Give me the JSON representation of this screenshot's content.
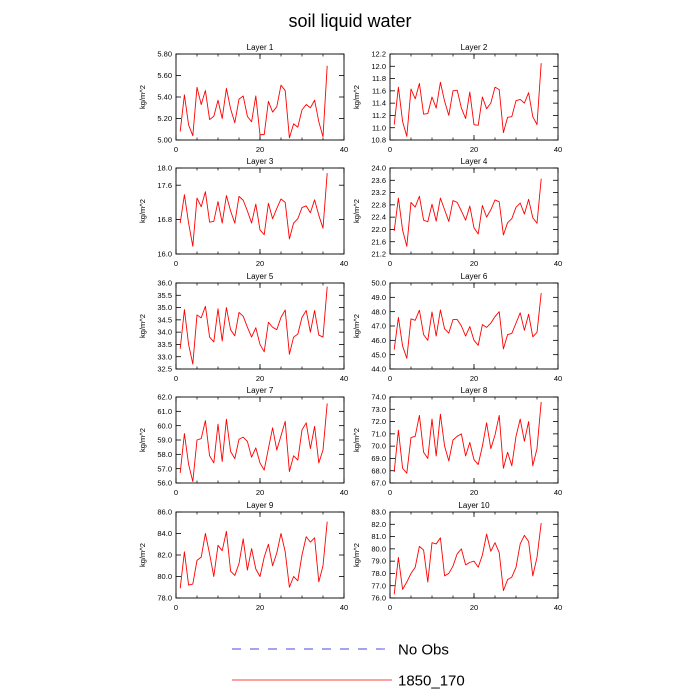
{
  "title": "soil liquid water",
  "legend": {
    "entries": [
      {
        "name": "No Obs",
        "color": "#4a4ad8",
        "style": "dashed"
      },
      {
        "name": "1850_170",
        "color": "#ff0000",
        "style": "solid"
      }
    ]
  },
  "chart_data": [
    {
      "type": "line",
      "title": "Layer 1",
      "xlabel": "",
      "ylabel": "kg/m^2",
      "xlim": [
        0,
        40
      ],
      "ylim": [
        5.0,
        5.8
      ],
      "xticks": [
        0,
        20,
        40
      ],
      "yticks": [
        5.0,
        5.2,
        5.4,
        5.6,
        5.8
      ],
      "ytick_decimals": 2,
      "series": [
        {
          "name": "1850_170",
          "color": "#ff0000",
          "x": [
            1,
            2,
            3,
            4,
            5,
            6,
            7,
            8,
            9,
            10,
            11,
            12,
            13,
            14,
            15,
            16,
            17,
            18,
            19,
            20,
            21,
            22,
            23,
            24,
            25,
            26,
            27,
            28,
            29,
            30,
            31,
            32,
            33,
            34,
            35,
            36
          ],
          "values": [
            5.08,
            5.42,
            5.14,
            5.04,
            5.49,
            5.33,
            5.46,
            5.19,
            5.22,
            5.37,
            5.2,
            5.48,
            5.29,
            5.16,
            5.38,
            5.41,
            5.22,
            5.17,
            5.41,
            5.05,
            5.05,
            5.36,
            5.26,
            5.31,
            5.51,
            5.46,
            5.02,
            5.15,
            5.12,
            5.28,
            5.33,
            5.3,
            5.37,
            5.17,
            5.03,
            5.69
          ]
        }
      ]
    },
    {
      "type": "line",
      "title": "Layer 2",
      "xlabel": "",
      "ylabel": "kg/m^2",
      "xlim": [
        0,
        40
      ],
      "ylim": [
        10.8,
        12.2
      ],
      "xticks": [
        0,
        20,
        40
      ],
      "yticks": [
        10.8,
        11.0,
        11.2,
        11.4,
        11.6,
        11.8,
        12.0,
        12.2
      ],
      "ytick_decimals": 1,
      "series": [
        {
          "name": "1850_170",
          "color": "#ff0000",
          "x": [
            1,
            2,
            3,
            4,
            5,
            6,
            7,
            8,
            9,
            10,
            11,
            12,
            13,
            14,
            15,
            16,
            17,
            18,
            19,
            20,
            21,
            22,
            23,
            24,
            25,
            26,
            27,
            28,
            29,
            30,
            31,
            32,
            33,
            34,
            35,
            36
          ],
          "values": [
            11.05,
            11.66,
            11.1,
            10.86,
            11.63,
            11.47,
            11.72,
            11.22,
            11.23,
            11.5,
            11.32,
            11.74,
            11.43,
            11.2,
            11.6,
            11.61,
            11.32,
            11.15,
            11.58,
            11.05,
            11.04,
            11.5,
            11.31,
            11.4,
            11.66,
            11.62,
            10.92,
            11.17,
            11.18,
            11.44,
            11.46,
            11.4,
            11.57,
            11.18,
            11.05,
            12.05
          ]
        }
      ]
    },
    {
      "type": "line",
      "title": "Layer 3",
      "xlabel": "",
      "ylabel": "kg/m^2",
      "xlim": [
        0,
        40
      ],
      "ylim": [
        16.0,
        18.0
      ],
      "xticks": [
        0,
        20,
        40
      ],
      "yticks": [
        16.0,
        16.8,
        17.6,
        18.0
      ],
      "ytick_decimals": 1,
      "series": [
        {
          "name": "1850_170",
          "color": "#ff0000",
          "x": [
            1,
            2,
            3,
            4,
            5,
            6,
            7,
            8,
            9,
            10,
            11,
            12,
            13,
            14,
            15,
            16,
            17,
            18,
            19,
            20,
            21,
            22,
            23,
            24,
            25,
            26,
            27,
            28,
            29,
            30,
            31,
            32,
            33,
            34,
            35,
            36
          ],
          "values": [
            16.72,
            17.38,
            16.72,
            16.18,
            17.3,
            17.1,
            17.45,
            16.74,
            16.76,
            17.22,
            16.72,
            17.36,
            17.0,
            16.72,
            17.34,
            17.25,
            17.0,
            16.72,
            17.16,
            16.56,
            16.45,
            17.18,
            16.82,
            17.06,
            17.28,
            17.2,
            16.35,
            16.72,
            16.82,
            17.08,
            17.12,
            16.96,
            17.26,
            16.9,
            16.6,
            17.88
          ]
        }
      ]
    },
    {
      "type": "line",
      "title": "Layer 4",
      "xlabel": "",
      "ylabel": "kg/m^2",
      "xlim": [
        0,
        40
      ],
      "ylim": [
        21.2,
        24.0
      ],
      "xticks": [
        0,
        20,
        40
      ],
      "yticks": [
        21.2,
        21.6,
        22.0,
        22.4,
        22.8,
        23.2,
        23.6,
        24.0
      ],
      "ytick_decimals": 1,
      "series": [
        {
          "name": "1850_170",
          "color": "#ff0000",
          "x": [
            1,
            2,
            3,
            4,
            5,
            6,
            7,
            8,
            9,
            10,
            11,
            12,
            13,
            14,
            15,
            16,
            17,
            18,
            19,
            20,
            21,
            22,
            23,
            24,
            25,
            26,
            27,
            28,
            29,
            30,
            31,
            32,
            33,
            34,
            35,
            36
          ],
          "values": [
            21.95,
            23.02,
            21.98,
            21.45,
            22.88,
            22.73,
            23.08,
            22.3,
            22.25,
            22.82,
            22.27,
            23.02,
            22.64,
            22.26,
            22.94,
            22.88,
            22.6,
            22.3,
            22.76,
            22.05,
            21.85,
            22.78,
            22.4,
            22.64,
            22.96,
            22.9,
            21.82,
            22.22,
            22.35,
            22.72,
            22.86,
            22.5,
            22.98,
            22.38,
            22.2,
            23.65
          ]
        }
      ]
    },
    {
      "type": "line",
      "title": "Layer 5",
      "xlabel": "",
      "ylabel": "kg/m^2",
      "xlim": [
        0,
        40
      ],
      "ylim": [
        32.5,
        36.0
      ],
      "xticks": [
        0,
        20,
        40
      ],
      "yticks": [
        32.5,
        33.0,
        33.5,
        34.0,
        34.5,
        35.0,
        35.5,
        36.0
      ],
      "ytick_decimals": 1,
      "series": [
        {
          "name": "1850_170",
          "color": "#ff0000",
          "x": [
            1,
            2,
            3,
            4,
            5,
            6,
            7,
            8,
            9,
            10,
            11,
            12,
            13,
            14,
            15,
            16,
            17,
            18,
            19,
            20,
            21,
            22,
            23,
            24,
            25,
            26,
            27,
            28,
            29,
            30,
            31,
            32,
            33,
            34,
            35,
            36
          ],
          "values": [
            33.32,
            34.92,
            33.5,
            32.7,
            34.7,
            34.58,
            35.05,
            33.8,
            33.6,
            34.95,
            33.64,
            35.0,
            34.1,
            33.85,
            34.8,
            34.65,
            34.2,
            33.8,
            34.18,
            33.5,
            33.2,
            34.4,
            34.2,
            34.1,
            34.6,
            34.9,
            33.1,
            33.8,
            33.92,
            34.6,
            34.88,
            34.0,
            34.88,
            33.88,
            33.8,
            35.85
          ]
        }
      ]
    },
    {
      "type": "line",
      "title": "Layer 6",
      "xlabel": "",
      "ylabel": "kg/m^2",
      "xlim": [
        0,
        40
      ],
      "ylim": [
        44.0,
        50.0
      ],
      "xticks": [
        0,
        20,
        40
      ],
      "yticks": [
        44.0,
        45.0,
        46.0,
        47.0,
        48.0,
        49.0,
        50.0
      ],
      "ytick_decimals": 1,
      "series": [
        {
          "name": "1850_170",
          "color": "#ff0000",
          "x": [
            1,
            2,
            3,
            4,
            5,
            6,
            7,
            8,
            9,
            10,
            11,
            12,
            13,
            14,
            15,
            16,
            17,
            18,
            19,
            20,
            21,
            22,
            23,
            24,
            25,
            26,
            27,
            28,
            29,
            30,
            31,
            32,
            33,
            34,
            35,
            36
          ],
          "values": [
            45.35,
            47.6,
            45.6,
            44.75,
            47.5,
            47.4,
            48.1,
            46.4,
            46.0,
            47.98,
            46.3,
            48.12,
            46.8,
            46.5,
            47.45,
            47.45,
            47.0,
            46.3,
            46.96,
            46.0,
            45.65,
            47.1,
            46.9,
            47.2,
            47.65,
            48.0,
            45.4,
            46.4,
            46.48,
            47.2,
            47.92,
            46.7,
            47.82,
            46.25,
            46.55,
            49.3
          ]
        }
      ]
    },
    {
      "type": "line",
      "title": "Layer 7",
      "xlabel": "",
      "ylabel": "kg/m^2",
      "xlim": [
        0,
        40
      ],
      "ylim": [
        56.0,
        62.0
      ],
      "xticks": [
        0,
        20,
        40
      ],
      "yticks": [
        56.0,
        57.0,
        58.0,
        59.0,
        60.0,
        61.0,
        62.0
      ],
      "ytick_decimals": 1,
      "series": [
        {
          "name": "1850_170",
          "color": "#ff0000",
          "x": [
            1,
            2,
            3,
            4,
            5,
            6,
            7,
            8,
            9,
            10,
            11,
            12,
            13,
            14,
            15,
            16,
            17,
            18,
            19,
            20,
            21,
            22,
            23,
            24,
            25,
            26,
            27,
            28,
            29,
            30,
            31,
            32,
            33,
            34,
            35,
            36
          ],
          "values": [
            56.7,
            59.45,
            57.3,
            56.1,
            59.0,
            59.1,
            60.35,
            57.9,
            57.4,
            60.1,
            57.5,
            60.45,
            58.2,
            57.7,
            59.05,
            59.2,
            58.9,
            57.8,
            58.45,
            57.4,
            56.9,
            58.4,
            59.85,
            58.3,
            59.3,
            60.3,
            56.8,
            57.9,
            57.6,
            59.7,
            60.2,
            58.4,
            59.95,
            57.4,
            58.3,
            61.55
          ]
        }
      ]
    },
    {
      "type": "line",
      "title": "Layer 8",
      "xlabel": "",
      "ylabel": "kg/m^2",
      "xlim": [
        0,
        40
      ],
      "ylim": [
        67.0,
        74.0
      ],
      "xticks": [
        0,
        20,
        40
      ],
      "yticks": [
        67.0,
        68.0,
        69.0,
        70.0,
        71.0,
        72.0,
        73.0,
        74.0
      ],
      "ytick_decimals": 1,
      "series": [
        {
          "name": "1850_170",
          "color": "#ff0000",
          "x": [
            1,
            2,
            3,
            4,
            5,
            6,
            7,
            8,
            9,
            10,
            11,
            12,
            13,
            14,
            15,
            16,
            17,
            18,
            19,
            20,
            21,
            22,
            23,
            24,
            25,
            26,
            27,
            28,
            29,
            30,
            31,
            32,
            33,
            34,
            35,
            36
          ],
          "values": [
            67.9,
            71.3,
            68.2,
            67.8,
            70.7,
            70.8,
            72.5,
            69.5,
            69.0,
            72.2,
            69.2,
            72.6,
            70.0,
            68.8,
            70.5,
            70.8,
            71.0,
            69.2,
            70.3,
            68.9,
            68.5,
            70.0,
            71.9,
            69.8,
            70.9,
            72.5,
            68.2,
            69.5,
            68.4,
            70.8,
            72.2,
            70.4,
            72.0,
            68.4,
            69.8,
            73.6
          ]
        }
      ]
    },
    {
      "type": "line",
      "title": "Layer 9",
      "xlabel": "",
      "ylabel": "kg/m^2",
      "xlim": [
        0,
        40
      ],
      "ylim": [
        78.0,
        86.0
      ],
      "xticks": [
        0,
        20,
        40
      ],
      "yticks": [
        78.0,
        80.0,
        82.0,
        84.0,
        86.0
      ],
      "ytick_decimals": 1,
      "series": [
        {
          "name": "1850_170",
          "color": "#ff0000",
          "x": [
            1,
            2,
            3,
            4,
            5,
            6,
            7,
            8,
            9,
            10,
            11,
            12,
            13,
            14,
            15,
            16,
            17,
            18,
            19,
            20,
            21,
            22,
            23,
            24,
            25,
            26,
            27,
            28,
            29,
            30,
            31,
            32,
            33,
            34,
            35,
            36
          ],
          "values": [
            78.9,
            82.3,
            79.2,
            79.3,
            81.5,
            81.8,
            84.0,
            82.1,
            80.0,
            82.9,
            82.4,
            84.2,
            80.5,
            80.1,
            81.2,
            83.5,
            80.6,
            82.6,
            80.7,
            80.0,
            81.8,
            83.0,
            81.0,
            82.2,
            84.0,
            82.3,
            79.0,
            80.0,
            79.6,
            82.0,
            83.7,
            83.2,
            83.6,
            79.5,
            81.0,
            85.1
          ]
        }
      ]
    },
    {
      "type": "line",
      "title": "Layer 10",
      "xlabel": "",
      "ylabel": "kg/m^2",
      "xlim": [
        0,
        40
      ],
      "ylim": [
        76.0,
        83.0
      ],
      "xticks": [
        0,
        20,
        40
      ],
      "yticks": [
        76.0,
        77.0,
        78.0,
        79.0,
        80.0,
        81.0,
        82.0,
        83.0
      ],
      "ytick_decimals": 1,
      "series": [
        {
          "name": "1850_170",
          "color": "#ff0000",
          "x": [
            1,
            2,
            3,
            4,
            5,
            6,
            7,
            8,
            9,
            10,
            11,
            12,
            13,
            14,
            15,
            16,
            17,
            18,
            19,
            20,
            21,
            22,
            23,
            24,
            25,
            26,
            27,
            28,
            29,
            30,
            31,
            32,
            33,
            34,
            35,
            36
          ],
          "values": [
            76.3,
            79.3,
            76.7,
            77.3,
            78.0,
            78.5,
            80.2,
            79.9,
            77.3,
            80.5,
            80.4,
            80.9,
            77.8,
            78.0,
            78.6,
            79.6,
            80.0,
            78.7,
            78.9,
            79.0,
            78.5,
            79.5,
            81.2,
            79.8,
            80.5,
            79.7,
            76.6,
            77.5,
            77.7,
            78.5,
            80.4,
            81.1,
            80.6,
            77.8,
            79.3,
            82.1
          ]
        }
      ]
    }
  ]
}
